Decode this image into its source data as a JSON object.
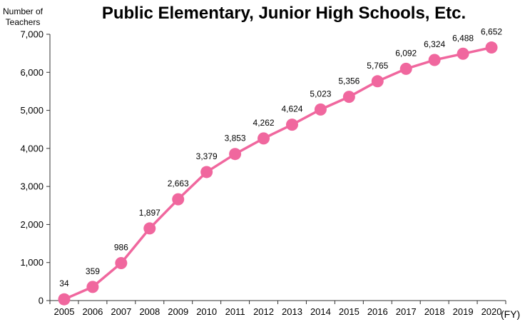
{
  "chart_data": {
    "type": "line",
    "title": "Public Elementary, Junior High Schools, Etc.",
    "ylabel": [
      "Number of",
      "Teachers"
    ],
    "xlabel": "(FY)",
    "ylim": [
      0,
      7000
    ],
    "yticks": [
      0,
      1000,
      2000,
      3000,
      4000,
      5000,
      6000,
      7000
    ],
    "ytick_labels": [
      "0",
      "1,000",
      "2,000",
      "3,000",
      "4,000",
      "5,000",
      "6,000",
      "7,000"
    ],
    "categories": [
      "2005",
      "2006",
      "2007",
      "2008",
      "2009",
      "2010",
      "2011",
      "2012",
      "2013",
      "2014",
      "2015",
      "2016",
      "2017",
      "2018",
      "2019",
      "2020"
    ],
    "values": [
      34,
      359,
      986,
      1897,
      2663,
      3379,
      3853,
      4262,
      4624,
      5023,
      5356,
      5765,
      6092,
      6324,
      6488,
      6652
    ],
    "data_labels": [
      "34",
      "359",
      "986",
      "1,897",
      "2,663",
      "3,379",
      "3,853",
      "4,262",
      "4,624",
      "5,023",
      "5,356",
      "5,765",
      "6,092",
      "6,324",
      "6,488",
      "6,652"
    ],
    "grid": false,
    "legend": "none",
    "series_color": "#f0679e"
  }
}
